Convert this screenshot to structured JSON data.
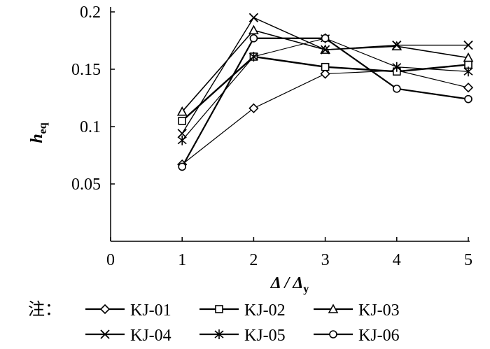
{
  "chart_data": {
    "type": "line",
    "xlabel": "Δ / Δ",
    "xlabel_sub": "y",
    "ylabel": "h",
    "ylabel_sub": "eq",
    "xlim": [
      0,
      5
    ],
    "ylim": [
      0,
      0.2
    ],
    "x_ticks": [
      "0",
      "1",
      "2",
      "3",
      "4",
      "5"
    ],
    "y_ticks": [
      "0.05",
      "0.1",
      "0.15",
      "0.2"
    ],
    "grid": false,
    "legend_placement": "bottom",
    "legend_note": "注：",
    "x": [
      1,
      2,
      3,
      4,
      5
    ],
    "series": [
      {
        "name": "KJ-01",
        "marker": "diamond",
        "values": [
          0.067,
          0.116,
          0.146,
          0.149,
          0.134
        ]
      },
      {
        "name": "KJ-02",
        "marker": "square",
        "values": [
          0.105,
          0.161,
          0.152,
          0.148,
          0.154
        ]
      },
      {
        "name": "KJ-03",
        "marker": "triangle",
        "values": [
          0.113,
          0.184,
          0.167,
          0.17,
          0.16
        ]
      },
      {
        "name": "KJ-04",
        "marker": "x",
        "values": [
          0.094,
          0.195,
          0.167,
          0.171,
          0.171
        ]
      },
      {
        "name": "KJ-05",
        "marker": "asterisk",
        "values": [
          0.088,
          0.161,
          0.177,
          0.152,
          0.148
        ]
      },
      {
        "name": "KJ-06",
        "marker": "circle",
        "values": [
          0.065,
          0.177,
          0.177,
          0.133,
          0.124
        ]
      }
    ]
  }
}
